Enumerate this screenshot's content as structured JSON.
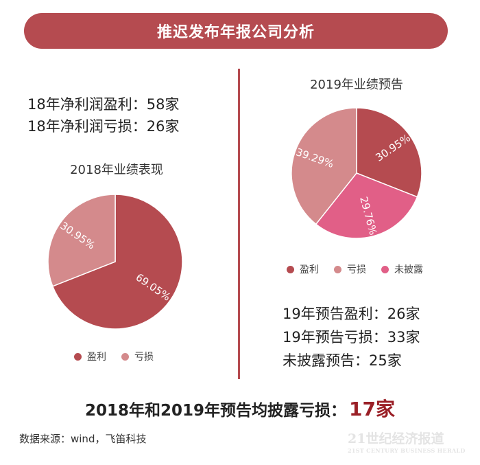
{
  "banner": {
    "title": "推迟发布年报公司分析"
  },
  "left": {
    "stats": [
      "18年净利润盈利：58家",
      "18年净利润亏损：26家"
    ]
  },
  "right": {
    "stats": [
      "19年预告盈利：26家",
      "19年预告亏损：33家",
      "未披露预告：25家"
    ]
  },
  "summary": {
    "text": "2018年和2019年预告均披露亏损：",
    "value": "17家"
  },
  "source": "数据来源：wind，飞笛科技",
  "watermark": {
    "main": "21世纪经济报道",
    "sub": "21ST CENTURY BUSINESS HERALD"
  },
  "chart_data": [
    {
      "type": "pie",
      "title": "2018年业绩表现",
      "start_angle_deg": 0,
      "slices": [
        {
          "label": "盈利",
          "value": 69.05,
          "display": "69.05%",
          "color": "#b54b50"
        },
        {
          "label": "亏损",
          "value": 30.95,
          "display": "30.95%",
          "color": "#d48a8c"
        }
      ],
      "legend_position": "bottom"
    },
    {
      "type": "pie",
      "title": "2019年业绩预告",
      "start_angle_deg": 0,
      "slices": [
        {
          "label": "盈利",
          "value": 30.95,
          "display": "30.95%",
          "color": "#b54b50"
        },
        {
          "label": "未披露",
          "value": 29.76,
          "display": "29.76%",
          "color": "#e15f87"
        },
        {
          "label": "亏损",
          "value": 39.29,
          "display": "39.29%",
          "color": "#d48a8c"
        }
      ],
      "legend": [
        {
          "label": "盈利",
          "color": "#b54b50"
        },
        {
          "label": "亏损",
          "color": "#d48a8c"
        },
        {
          "label": "未披露",
          "color": "#e15f87"
        }
      ],
      "legend_position": "bottom"
    }
  ]
}
